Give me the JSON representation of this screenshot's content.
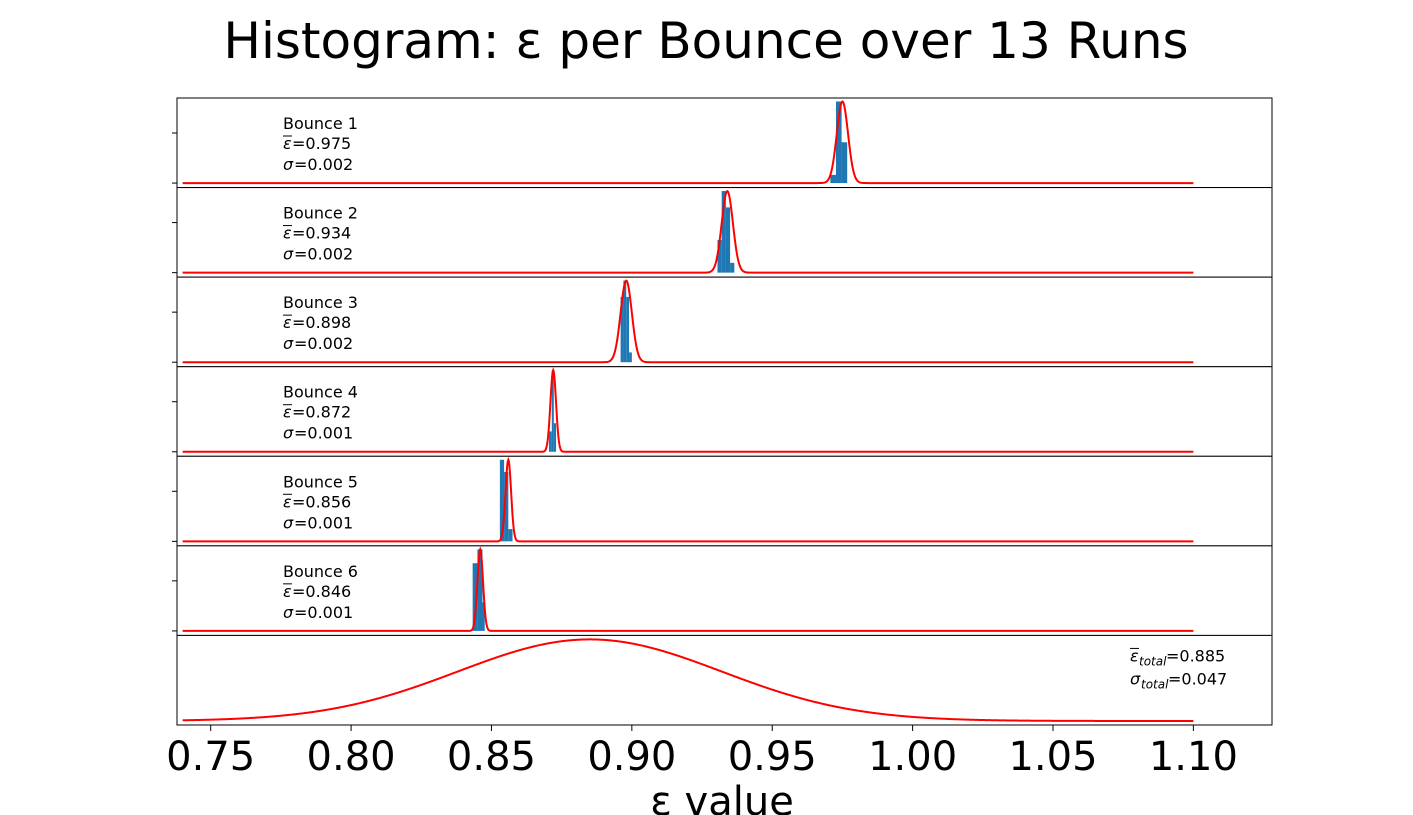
{
  "chart_data": {
    "type": "histogram",
    "title": "Histogram: ε per Bounce over 13 Runs",
    "xlabel": "ε value",
    "xlim": [
      0.738,
      1.128
    ],
    "curve_xlim": [
      0.74,
      1.1
    ],
    "xticks": [
      "0.75",
      "0.80",
      "0.85",
      "0.90",
      "0.95",
      "1.00",
      "1.05",
      "1.10"
    ],
    "xtick_values": [
      0.75,
      0.8,
      0.85,
      0.9,
      0.95,
      1.0,
      1.05,
      1.1
    ],
    "colors": {
      "bar": "#1f77b4",
      "curve": "#ff0000",
      "axes": "#000000"
    },
    "panels": [
      {
        "label": "Bounce 1",
        "mean_text": "=0.975",
        "sigma_text": "=0.002",
        "mean": 0.975,
        "sigma": 0.002,
        "bins": [
          {
            "x0": 0.9707,
            "x1": 0.9727,
            "h": 0.1
          },
          {
            "x0": 0.9727,
            "x1": 0.9747,
            "h": 1.0
          },
          {
            "x0": 0.9747,
            "x1": 0.9767,
            "h": 0.5
          }
        ]
      },
      {
        "label": "Bounce 2",
        "mean_text": "=0.934",
        "sigma_text": "=0.002",
        "mean": 0.934,
        "sigma": 0.002,
        "bins": [
          {
            "x0": 0.9305,
            "x1": 0.932,
            "h": 0.4
          },
          {
            "x0": 0.932,
            "x1": 0.9335,
            "h": 1.0
          },
          {
            "x0": 0.9335,
            "x1": 0.935,
            "h": 0.8
          },
          {
            "x0": 0.935,
            "x1": 0.9365,
            "h": 0.12
          }
        ]
      },
      {
        "label": "Bounce 3",
        "mean_text": "=0.898",
        "sigma_text": "=0.002",
        "mean": 0.898,
        "sigma": 0.002,
        "bins": [
          {
            "x0": 0.896,
            "x1": 0.897,
            "h": 0.8
          },
          {
            "x0": 0.897,
            "x1": 0.898,
            "h": 1.0
          },
          {
            "x0": 0.898,
            "x1": 0.899,
            "h": 0.8
          },
          {
            "x0": 0.899,
            "x1": 0.9,
            "h": 0.12
          }
        ]
      },
      {
        "label": "Bounce 4",
        "mean_text": "=0.872",
        "sigma_text": "=0.001",
        "mean": 0.872,
        "sigma": 0.001,
        "bins": [
          {
            "x0": 0.8705,
            "x1": 0.8715,
            "h": 0.25
          },
          {
            "x0": 0.8715,
            "x1": 0.8722,
            "h": 1.0
          },
          {
            "x0": 0.8722,
            "x1": 0.873,
            "h": 0.35
          }
        ]
      },
      {
        "label": "Bounce 5",
        "mean_text": "=0.856",
        "sigma_text": "=0.001",
        "mean": 0.856,
        "sigma": 0.001,
        "bins": [
          {
            "x0": 0.853,
            "x1": 0.8545,
            "h": 1.0
          },
          {
            "x0": 0.8545,
            "x1": 0.856,
            "h": 0.85
          },
          {
            "x0": 0.856,
            "x1": 0.8575,
            "h": 0.15
          }
        ]
      },
      {
        "label": "Bounce 6",
        "mean_text": "=0.846",
        "sigma_text": "=0.001",
        "mean": 0.846,
        "sigma": 0.001,
        "bins": [
          {
            "x0": 0.8433,
            "x1": 0.845,
            "h": 0.83
          },
          {
            "x0": 0.845,
            "x1": 0.8468,
            "h": 1.0
          },
          {
            "x0": 0.8468,
            "x1": 0.8476,
            "h": 0.35
          }
        ]
      }
    ],
    "total": {
      "mean": 0.885,
      "sigma": 0.047,
      "mean_text": "=0.885",
      "sigma_text": "=0.047",
      "subscript": "total"
    }
  }
}
